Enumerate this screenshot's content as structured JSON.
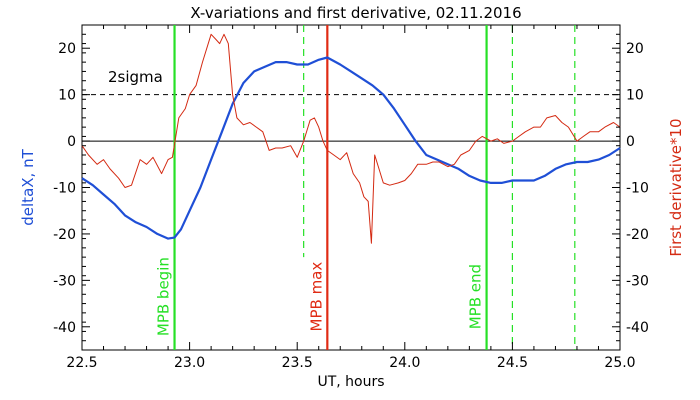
{
  "chart_data": {
    "type": "line",
    "title": "X-variations and first derivative, 02.11.2016",
    "xlabel": "UT, hours",
    "ylabel_left": "deltaX, nT",
    "ylabel_right": "First derivative*10",
    "xlim": [
      22.5,
      25.0
    ],
    "ylim": [
      -45,
      25
    ],
    "x_ticks": [
      22.5,
      23.0,
      23.5,
      24.0,
      24.5,
      25.0
    ],
    "x_tick_labels": [
      "22.5",
      "23.0",
      "23.5",
      "24.0",
      "24.5",
      "25.0"
    ],
    "y_ticks": [
      -40,
      -30,
      -20,
      -10,
      0,
      10,
      20
    ],
    "y_tick_labels": [
      "-40",
      "-30",
      "-20",
      "-10",
      "0",
      "10",
      "20"
    ],
    "threshold": {
      "label": "2sigma",
      "value": 10
    },
    "series": [
      {
        "color": "#1f4fd6",
        "axis": "left",
        "x": [
          22.5,
          22.55,
          22.6,
          22.65,
          22.7,
          22.75,
          22.8,
          22.85,
          22.9,
          22.93,
          22.96,
          23.0,
          23.05,
          23.1,
          23.15,
          23.2,
          23.25,
          23.3,
          23.35,
          23.4,
          23.45,
          23.5,
          23.55,
          23.6,
          23.64,
          23.7,
          23.75,
          23.8,
          23.85,
          23.9,
          23.95,
          24.0,
          24.05,
          24.1,
          24.15,
          24.2,
          24.25,
          24.3,
          24.35,
          24.4,
          24.45,
          24.5,
          24.55,
          24.6,
          24.65,
          24.7,
          24.75,
          24.8,
          24.85,
          24.9,
          24.95,
          25.0
        ],
        "y": [
          -8,
          -9.5,
          -11.5,
          -13.5,
          -16,
          -17.5,
          -18.5,
          -20,
          -21,
          -20.8,
          -19,
          -15,
          -10,
          -4,
          2,
          8,
          12.5,
          15,
          16,
          17,
          17,
          16.5,
          16.5,
          17.5,
          18,
          16.5,
          15,
          13.5,
          12,
          10,
          7,
          3.5,
          0,
          -3,
          -4,
          -5,
          -6,
          -7.5,
          -8.5,
          -9,
          -9,
          -8.5,
          -8.5,
          -8.5,
          -7.5,
          -6,
          -5,
          -4.5,
          -4.5,
          -4,
          -3,
          -1.5
        ]
      },
      {
        "color": "#d42a12",
        "axis": "right",
        "x": [
          22.5,
          22.53,
          22.57,
          22.6,
          22.63,
          22.67,
          22.7,
          22.73,
          22.77,
          22.8,
          22.83,
          22.87,
          22.9,
          22.92,
          22.95,
          22.98,
          23.0,
          23.03,
          23.06,
          23.1,
          23.12,
          23.14,
          23.16,
          23.18,
          23.2,
          23.22,
          23.25,
          23.28,
          23.31,
          23.34,
          23.37,
          23.4,
          23.43,
          23.47,
          23.5,
          23.53,
          23.56,
          23.58,
          23.6,
          23.62,
          23.64,
          23.67,
          23.7,
          23.73,
          23.76,
          23.79,
          23.81,
          23.83,
          23.845,
          23.86,
          23.88,
          23.9,
          23.93,
          23.97,
          24.0,
          24.03,
          24.06,
          24.1,
          24.13,
          24.16,
          24.2,
          24.23,
          24.26,
          24.3,
          24.33,
          24.36,
          24.4,
          24.43,
          24.46,
          24.5,
          24.53,
          24.56,
          24.6,
          24.63,
          24.66,
          24.7,
          24.73,
          24.76,
          24.8,
          24.83,
          24.86,
          24.9,
          24.93,
          24.97,
          25.0
        ],
        "y": [
          -1,
          -3,
          -5,
          -4,
          -6,
          -8,
          -10,
          -9.5,
          -4,
          -5,
          -3.5,
          -7,
          -4,
          -3.5,
          5,
          7,
          10,
          12,
          17,
          23,
          22,
          21,
          23,
          21,
          10,
          5,
          3.5,
          4,
          3,
          2,
          -2,
          -1.5,
          -1.5,
          -1,
          -3.5,
          0,
          4.5,
          5,
          3,
          0,
          -2,
          -3,
          -4,
          -2.5,
          -7,
          -9,
          -12,
          -13,
          -22,
          -3,
          -6,
          -9,
          -9.5,
          -9,
          -8.5,
          -7,
          -5,
          -5,
          -4.5,
          -4.5,
          -5.5,
          -5,
          -3,
          -2,
          0,
          1,
          0,
          0.5,
          -0.5,
          0,
          1,
          2,
          3,
          3,
          5,
          5.5,
          4,
          3,
          0,
          1,
          2,
          2,
          3,
          4,
          3
        ]
      }
    ],
    "markers": [
      {
        "label": "MPB begin",
        "x": 22.93,
        "color": "#26e026",
        "style": "solid",
        "text_y": -33.5
      },
      {
        "label": "MPB max",
        "x": 23.64,
        "color": "#e02b14",
        "style": "solid",
        "text_y": -33.5
      },
      {
        "label": "MPB end",
        "x": 24.38,
        "color": "#26e026",
        "style": "solid",
        "text_y": -33.5
      },
      {
        "label": "",
        "x": 23.53,
        "color": "#26e026",
        "style": "dashed",
        "y_range": [
          -25,
          25
        ]
      },
      {
        "label": "",
        "x": 24.5,
        "color": "#26e026",
        "style": "dashed",
        "y_range": [
          -45,
          25
        ]
      },
      {
        "label": "",
        "x": 24.79,
        "color": "#26e026",
        "style": "dashed",
        "y_range": [
          -45,
          25
        ]
      }
    ],
    "colors": {
      "left_axis_label": "#1f4fd6",
      "right_axis_label": "#d42a12"
    }
  }
}
